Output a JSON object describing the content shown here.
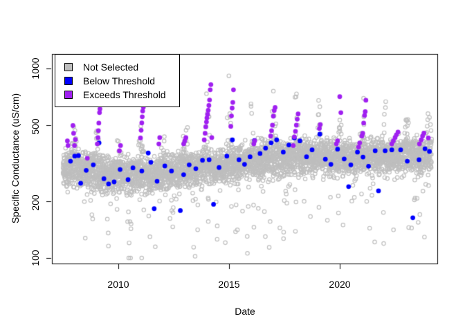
{
  "figure": {
    "background": "#ffffff",
    "xlabel": "Date",
    "ylabel": "Specific Conductance (uS/cm)"
  },
  "legend": {
    "items": [
      {
        "label": "Not Selected",
        "color": "#BEBEBE",
        "border": "#000000"
      },
      {
        "label": "Below Threshold",
        "color": "#0000FF",
        "border": "#000000"
      },
      {
        "label": "Exceeds Threshold",
        "color": "#A020F0",
        "border": "#000000"
      }
    ]
  },
  "chart_data": {
    "type": "scatter",
    "title": "",
    "xlabel": "Date",
    "ylabel": "Specific Conductance (uS/cm)",
    "x_ticks": [
      2010,
      2015,
      2020
    ],
    "y_ticks": [
      100,
      200,
      500,
      1000
    ],
    "x_range": [
      2007.0,
      2024.4
    ],
    "y_range": [
      93,
      1190
    ],
    "y_scale": "log10",
    "grid": false,
    "legend_position": "top-left",
    "series": [
      {
        "name": "Not Selected",
        "color": "#BEBEBE",
        "marker": "open-circle",
        "generator": {
          "seed": 20150107,
          "points": 4200,
          "start": 2007.5,
          "end": 2024.15,
          "baseline_knots": [
            [
              2007.5,
              298
            ],
            [
              2008.5,
              292
            ],
            [
              2009.5,
              278
            ],
            [
              2010.5,
              272
            ],
            [
              2011.5,
              272
            ],
            [
              2012.5,
              285
            ],
            [
              2013.5,
              296
            ],
            [
              2014.5,
              302
            ],
            [
              2015.5,
              316
            ],
            [
              2016.5,
              330
            ],
            [
              2017.5,
              338
            ],
            [
              2018.5,
              348
            ],
            [
              2019.5,
              342
            ],
            [
              2020.5,
              336
            ],
            [
              2021.5,
              344
            ],
            [
              2022.5,
              350
            ],
            [
              2023.5,
              344
            ],
            [
              2024.2,
              340
            ]
          ],
          "noise_sd": 0.045,
          "winter_prob": 0.3,
          "winter_amp": {
            "2008": 0.3,
            "2009": 0.34,
            "2010": 0.2,
            "2011": 0.35,
            "2012": 0.22,
            "2013": 0.3,
            "2014": 0.44,
            "2015": 0.52,
            "2016": 0.3,
            "2017": 0.42,
            "2018": 0.4,
            "2019": 0.42,
            "2020": 0.3,
            "2021": 0.36,
            "2022": 0.26,
            "2023": 0.3,
            "2024": 0.26
          },
          "dip_prob": 0.1,
          "dip_amp": 0.42,
          "clip": [
            100,
            1060
          ]
        }
      },
      {
        "name": "Below Threshold",
        "color": "#0000FF",
        "marker": "filled-circle",
        "points": [
          [
            2007.84,
            324
          ],
          [
            2008.03,
            345
          ],
          [
            2008.2,
            347
          ],
          [
            2008.3,
            248
          ],
          [
            2008.55,
            290
          ],
          [
            2008.87,
            310
          ],
          [
            2009.13,
            405
          ],
          [
            2009.35,
            262
          ],
          [
            2009.56,
            246
          ],
          [
            2009.81,
            252
          ],
          [
            2010.08,
            293
          ],
          [
            2010.44,
            259
          ],
          [
            2010.66,
            299
          ],
          [
            2011.06,
            288
          ],
          [
            2011.35,
            358
          ],
          [
            2011.47,
            320
          ],
          [
            2011.62,
            182
          ],
          [
            2011.75,
            254
          ],
          [
            2012.1,
            306
          ],
          [
            2012.4,
            288
          ],
          [
            2012.8,
            178
          ],
          [
            2012.95,
            275
          ],
          [
            2013.2,
            310
          ],
          [
            2013.5,
            296
          ],
          [
            2013.8,
            328
          ],
          [
            2014.1,
            330
          ],
          [
            2014.3,
            192
          ],
          [
            2014.55,
            300
          ],
          [
            2014.9,
            345
          ],
          [
            2015.15,
            420
          ],
          [
            2015.45,
            330
          ],
          [
            2015.7,
            312
          ],
          [
            2015.95,
            342
          ],
          [
            2016.15,
            417
          ],
          [
            2016.4,
            356
          ],
          [
            2016.65,
            380
          ],
          [
            2016.9,
            405
          ],
          [
            2017.15,
            420
          ],
          [
            2017.45,
            362
          ],
          [
            2017.7,
            395
          ],
          [
            2017.95,
            430
          ],
          [
            2018.2,
            415
          ],
          [
            2018.5,
            342
          ],
          [
            2018.75,
            372
          ],
          [
            2019.1,
            450
          ],
          [
            2019.35,
            332
          ],
          [
            2019.6,
            312
          ],
          [
            2019.9,
            375
          ],
          [
            2020.2,
            333
          ],
          [
            2020.4,
            238
          ],
          [
            2020.5,
            310
          ],
          [
            2020.8,
            362
          ],
          [
            2021.05,
            341
          ],
          [
            2021.3,
            305
          ],
          [
            2021.6,
            368
          ],
          [
            2021.75,
            226
          ],
          [
            2022.05,
            368
          ],
          [
            2022.35,
            372
          ],
          [
            2022.75,
            372
          ],
          [
            2023.05,
            324
          ],
          [
            2023.3,
            163
          ],
          [
            2023.58,
            330
          ],
          [
            2023.85,
            377
          ],
          [
            2024.05,
            365
          ]
        ]
      },
      {
        "name": "Exceeds Threshold",
        "color": "#A020F0",
        "marker": "filled-circle",
        "points": [
          [
            2007.7,
            415
          ],
          [
            2007.73,
            392
          ],
          [
            2007.95,
            500
          ],
          [
            2007.98,
            455
          ],
          [
            2008.02,
            392
          ],
          [
            2008.06,
            422
          ],
          [
            2008.6,
            336
          ],
          [
            2009.05,
            400
          ],
          [
            2009.08,
            432
          ],
          [
            2009.1,
            470
          ],
          [
            2009.12,
            515
          ],
          [
            2009.15,
            585
          ],
          [
            2009.17,
            612
          ],
          [
            2010.05,
            368
          ],
          [
            2010.1,
            392
          ],
          [
            2011.0,
            430
          ],
          [
            2011.03,
            472
          ],
          [
            2011.06,
            516
          ],
          [
            2011.08,
            556
          ],
          [
            2011.1,
            596
          ],
          [
            2011.13,
            625
          ],
          [
            2011.83,
            400
          ],
          [
            2011.87,
            432
          ],
          [
            2012.95,
            400
          ],
          [
            2013.0,
            415
          ],
          [
            2013.05,
            432
          ],
          [
            2013.88,
            420
          ],
          [
            2013.92,
            455
          ],
          [
            2013.95,
            492
          ],
          [
            2013.98,
            522
          ],
          [
            2014.0,
            548
          ],
          [
            2014.03,
            572
          ],
          [
            2014.06,
            602
          ],
          [
            2014.09,
            638
          ],
          [
            2014.12,
            682
          ],
          [
            2014.15,
            772
          ],
          [
            2014.18,
            822
          ],
          [
            2014.22,
            432
          ],
          [
            2015.08,
            495
          ],
          [
            2015.11,
            562
          ],
          [
            2015.14,
            618
          ],
          [
            2015.17,
            662
          ],
          [
            2015.2,
            772
          ],
          [
            2016.12,
            400
          ],
          [
            2016.16,
            415
          ],
          [
            2016.88,
            440
          ],
          [
            2016.92,
            470
          ],
          [
            2016.96,
            502
          ],
          [
            2017.0,
            560
          ],
          [
            2017.04,
            600
          ],
          [
            2017.08,
            622
          ],
          [
            2017.9,
            392
          ],
          [
            2017.95,
            436
          ],
          [
            2018.0,
            466
          ],
          [
            2018.04,
            502
          ],
          [
            2018.08,
            540
          ],
          [
            2018.12,
            576
          ],
          [
            2019.08,
            482
          ],
          [
            2019.12,
            506
          ],
          [
            2019.85,
            400
          ],
          [
            2019.9,
            415
          ],
          [
            2020.0,
            710
          ],
          [
            2020.05,
            585
          ],
          [
            2020.85,
            385
          ],
          [
            2020.9,
            405
          ],
          [
            2021.0,
            440
          ],
          [
            2021.04,
            455
          ],
          [
            2021.08,
            515
          ],
          [
            2021.12,
            565
          ],
          [
            2021.15,
            592
          ],
          [
            2021.18,
            680
          ],
          [
            2022.35,
            400
          ],
          [
            2022.42,
            415
          ],
          [
            2022.5,
            432
          ],
          [
            2022.56,
            447
          ],
          [
            2022.63,
            462
          ],
          [
            2023.6,
            400
          ],
          [
            2023.68,
            420
          ],
          [
            2023.74,
            440
          ],
          [
            2023.8,
            456
          ],
          [
            2024.0,
            430
          ]
        ]
      }
    ]
  }
}
